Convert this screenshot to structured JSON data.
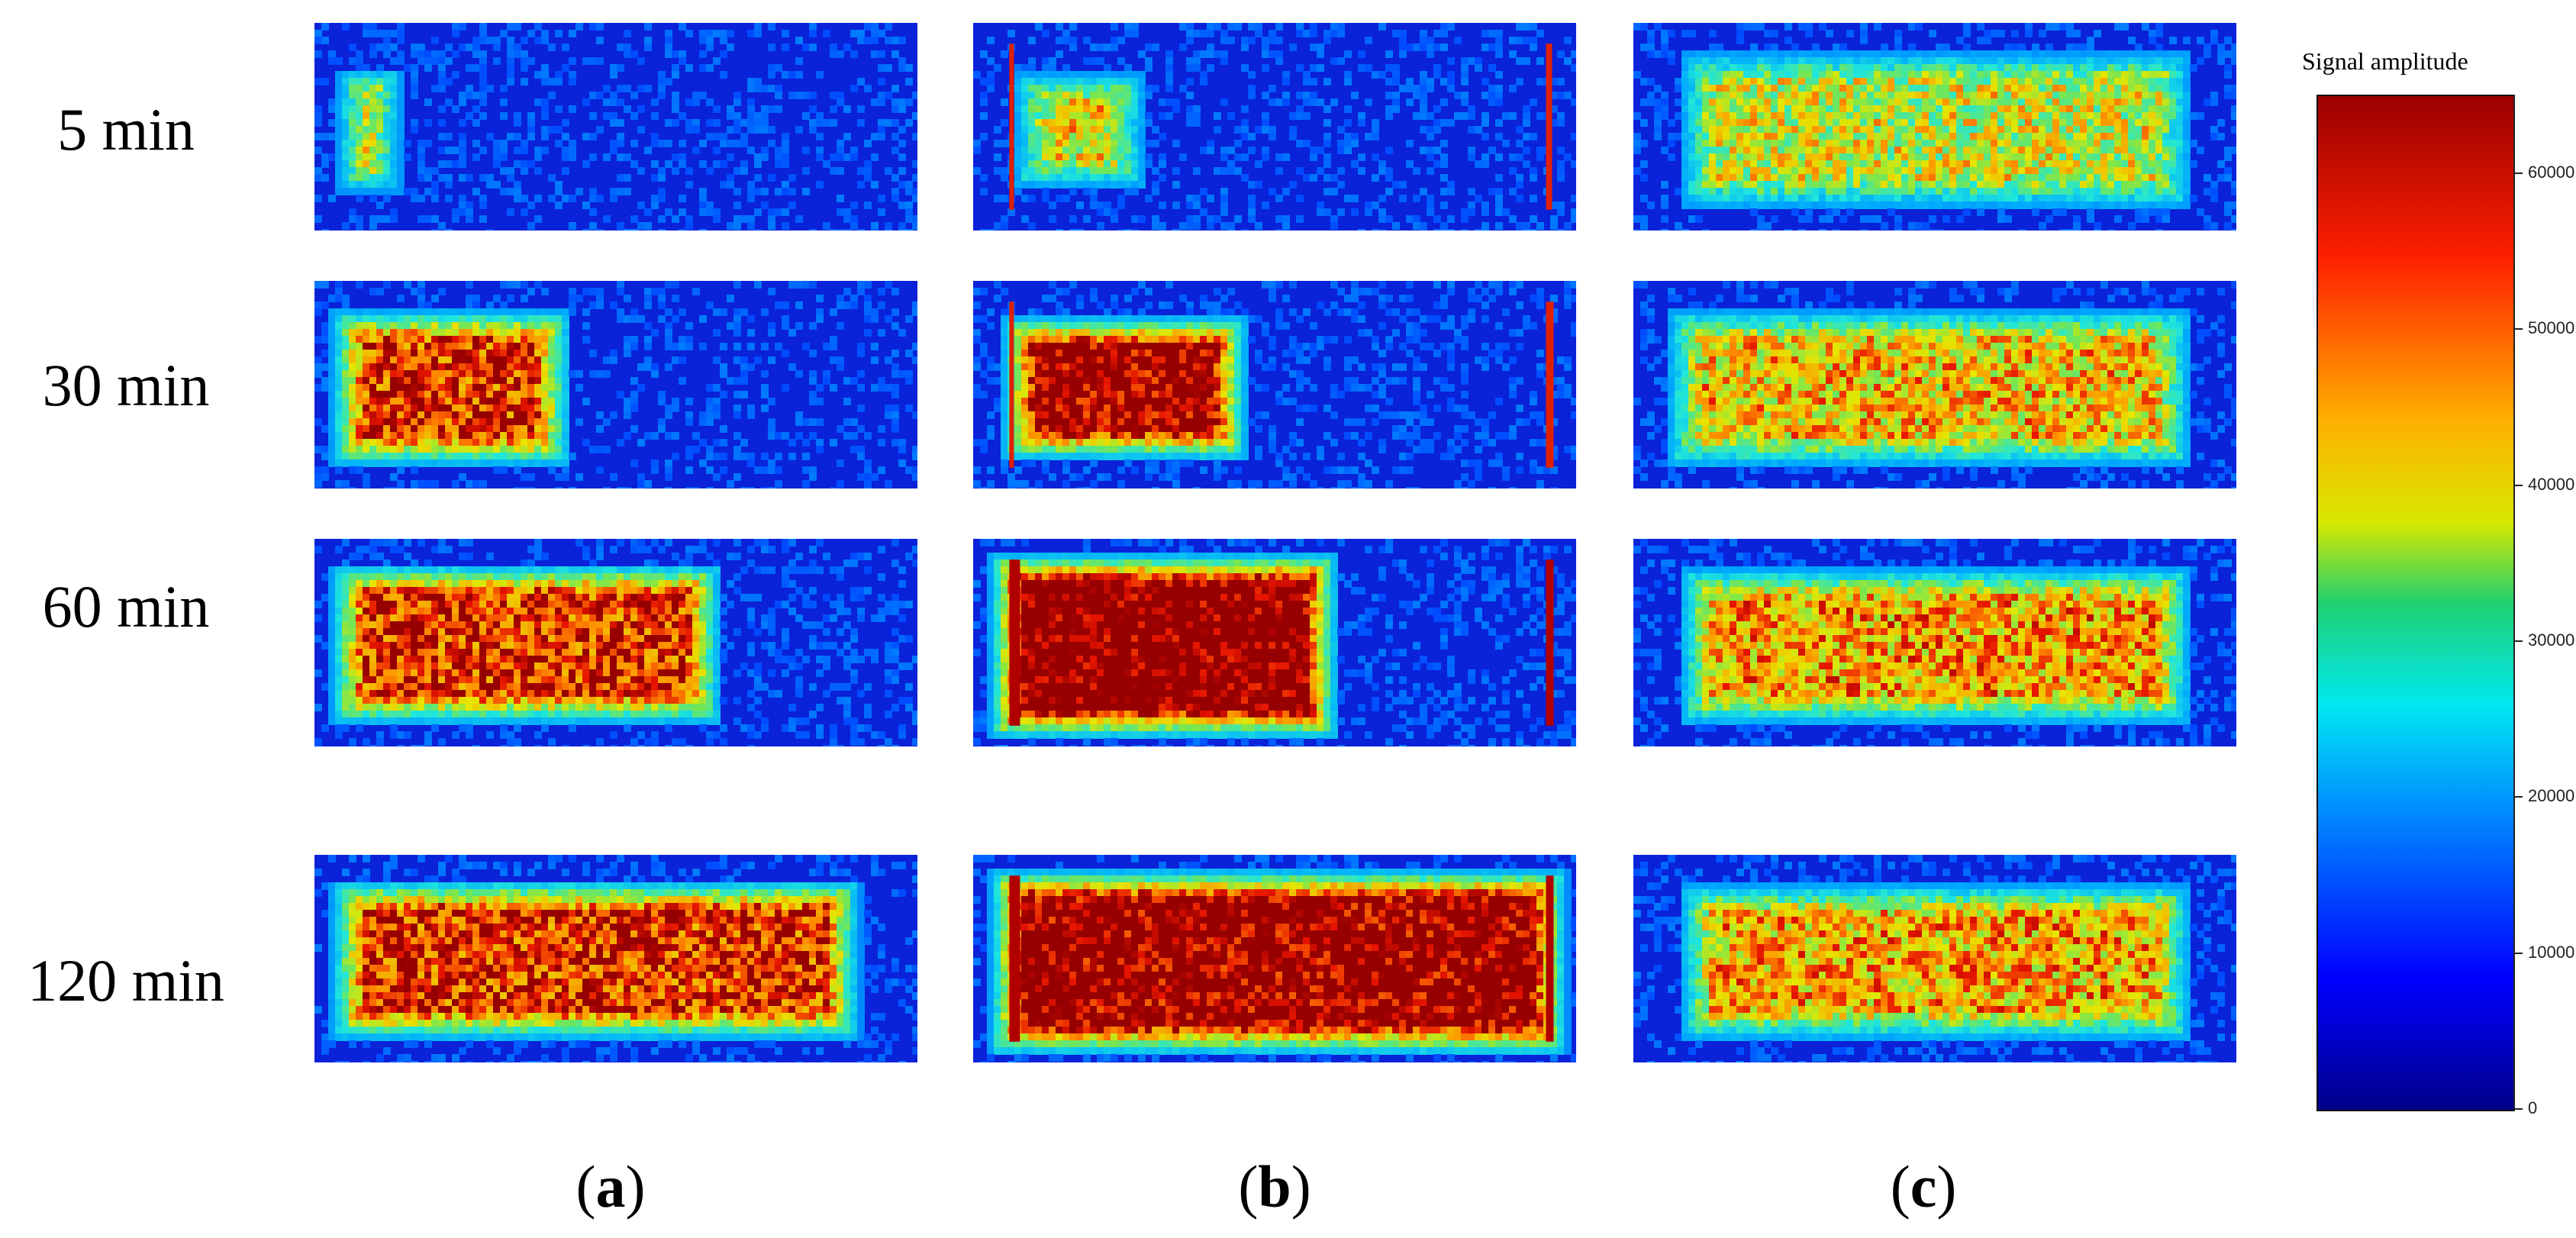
{
  "row_labels": [
    "5 min",
    "30 min",
    "60 min",
    "120 min"
  ],
  "column_labels": [
    "a",
    "b",
    "c"
  ],
  "colorbar": {
    "title": "Signal amplitude",
    "ticks": [
      "60000",
      "50000",
      "40000",
      "30000",
      "20000",
      "10000",
      "0"
    ]
  },
  "colors": {
    "background_blue": "#0a1fd0",
    "hot_red": "#b00000",
    "mid_yellow": "#e8e800",
    "mid_cyan": "#20e0e0"
  }
}
